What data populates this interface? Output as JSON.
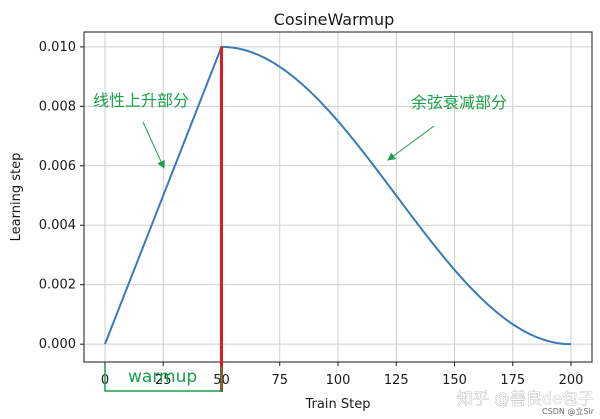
{
  "chart_data": {
    "type": "line",
    "title": "CosineWarmup",
    "xlabel": "Train Step",
    "ylabel": "Learning step",
    "xlim": [
      -9,
      209
    ],
    "ylim": [
      -0.0006,
      0.0105
    ],
    "x_ticks": [
      "0",
      "25",
      "50",
      "75",
      "100",
      "125",
      "150",
      "175",
      "200"
    ],
    "y_ticks": [
      "0.000",
      "0.002",
      "0.004",
      "0.006",
      "0.008",
      "0.010"
    ],
    "grid": true,
    "series": [
      {
        "color": "#3a7ab8",
        "x": [
          0,
          50,
          200
        ],
        "y": [
          0,
          0.01,
          0
        ],
        "segments": [
          "linear warmup 0→50",
          "cosine decay 50→200"
        ]
      }
    ],
    "vline": {
      "x": 50,
      "color": "#e01b1b"
    },
    "annotations": [
      {
        "text": "线性上升部分",
        "color": "#1aa049"
      },
      {
        "text": "余弦衰减部分",
        "color": "#1aa049"
      },
      {
        "text": "warmup",
        "color": "#1aa049"
      }
    ],
    "warmup_bracket_x": [
      0,
      50
    ]
  },
  "watermark": {
    "main": "知乎 @善良de包子",
    "small": "CSDN @立Sir"
  }
}
